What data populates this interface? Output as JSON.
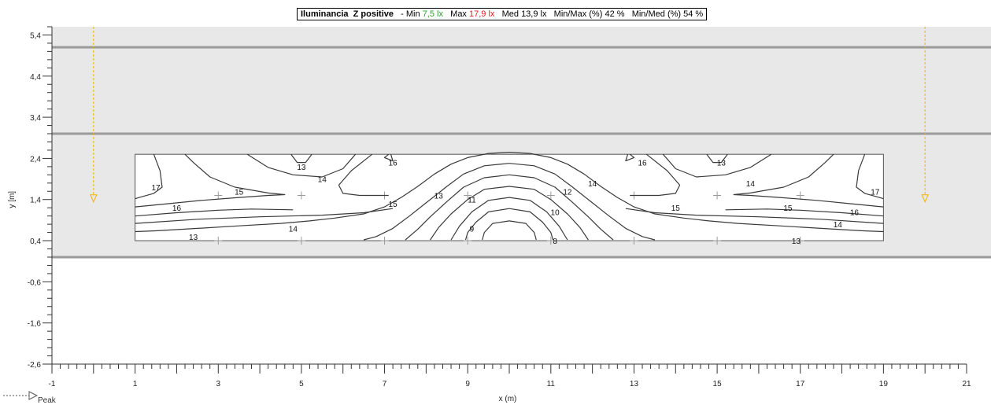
{
  "header": {
    "title": "Iluminancia",
    "plane": "Z positive",
    "min_label": "- Min",
    "min_value": "7,5 lx",
    "max_label": "Max",
    "max_value": "17,9 lx",
    "med_label": "Med",
    "med_value": "13,9 lx",
    "minmax_label": "Min/Max (%)",
    "minmax_value": "42 %",
    "minmed_label": "Min/Med (%)",
    "minmed_value": "54 %"
  },
  "legend": {
    "peak": "Peak"
  },
  "colors": {
    "room": "#e8e8e8",
    "room_border": "#9a9a9a",
    "contour": "#3a3a3a",
    "luminaire": "#f0b400",
    "min_value": "#2e9d2e",
    "max_value": "#e02020"
  },
  "chart_data": {
    "type": "contour",
    "xlabel": "x (m)",
    "ylabel": "y [m]",
    "xlim": [
      -1,
      21
    ],
    "ylim": [
      -2.6,
      5.6
    ],
    "x_ticks": [
      "-1",
      "1",
      "3",
      "5",
      "7",
      "9",
      "11",
      "13",
      "15",
      "17",
      "19",
      "21"
    ],
    "y_ticks": [
      "5,4",
      "4,4",
      "3,4",
      "2,4",
      "1,4",
      "0,4",
      "-0,6",
      "-1,6",
      "-2,6"
    ],
    "grid": false,
    "room_band": {
      "y_min": 0.0,
      "y_max": 5.6
    },
    "room_lines_y": [
      5.1,
      3.0
    ],
    "calc_area": {
      "x": [
        1,
        19
      ],
      "y": [
        0.4,
        2.5
      ]
    },
    "grid_points_x": [
      3,
      5,
      7,
      9,
      11,
      13,
      15,
      17
    ],
    "grid_points_y": [
      1.5,
      0.4
    ],
    "luminaires": [
      {
        "x": 0,
        "y_top": 5.6,
        "y_arrow": 1.4
      },
      {
        "x": 20,
        "y_top": 5.6,
        "y_arrow": 1.4
      }
    ],
    "contour_labels": [
      {
        "text": "17",
        "x": 1.5,
        "y": 1.7
      },
      {
        "text": "16",
        "x": 2.0,
        "y": 1.2
      },
      {
        "text": "15",
        "x": 3.5,
        "y": 1.6
      },
      {
        "text": "13",
        "x": 2.4,
        "y": 0.5
      },
      {
        "text": "14",
        "x": 4.8,
        "y": 0.7
      },
      {
        "text": "13",
        "x": 5.0,
        "y": 2.2
      },
      {
        "text": "14",
        "x": 5.5,
        "y": 1.9
      },
      {
        "text": "16",
        "x": 7.2,
        "y": 2.3
      },
      {
        "text": "15",
        "x": 7.2,
        "y": 1.3
      },
      {
        "text": "13",
        "x": 8.3,
        "y": 1.5
      },
      {
        "text": "11",
        "x": 9.1,
        "y": 1.4
      },
      {
        "text": "9",
        "x": 9.1,
        "y": 0.7
      },
      {
        "text": "12",
        "x": 11.4,
        "y": 1.6
      },
      {
        "text": "10",
        "x": 11.1,
        "y": 1.1
      },
      {
        "text": "8",
        "x": 11.1,
        "y": 0.4
      },
      {
        "text": "14",
        "x": 12.0,
        "y": 1.8
      },
      {
        "text": "16",
        "x": 13.2,
        "y": 2.3
      },
      {
        "text": "15",
        "x": 14.0,
        "y": 1.2
      },
      {
        "text": "13",
        "x": 15.1,
        "y": 2.3
      },
      {
        "text": "14",
        "x": 15.8,
        "y": 1.8
      },
      {
        "text": "15",
        "x": 16.7,
        "y": 1.2
      },
      {
        "text": "17",
        "x": 18.8,
        "y": 1.6
      },
      {
        "text": "16",
        "x": 18.3,
        "y": 1.1
      },
      {
        "text": "14",
        "x": 17.9,
        "y": 0.8
      },
      {
        "text": "13",
        "x": 16.9,
        "y": 0.4
      }
    ],
    "contours": [
      [
        [
          10,
          2.55
        ],
        [
          9.5,
          2.52
        ],
        [
          9,
          2.42
        ],
        [
          8.6,
          2.26
        ],
        [
          8.2,
          2.02
        ],
        [
          7.8,
          1.72
        ],
        [
          7.4,
          1.45
        ],
        [
          7.0,
          1.22
        ],
        [
          6.5,
          1.05
        ],
        [
          5.8,
          0.95
        ],
        [
          5.2,
          0.88
        ],
        [
          4.5,
          0.82
        ],
        [
          3.5,
          0.76
        ],
        [
          2.5,
          0.7
        ],
        [
          1.5,
          0.64
        ],
        [
          1,
          0.62
        ]
      ],
      [
        [
          10,
          2.55
        ],
        [
          10.5,
          2.52
        ],
        [
          11,
          2.42
        ],
        [
          11.4,
          2.26
        ],
        [
          11.8,
          2.02
        ],
        [
          12.2,
          1.72
        ],
        [
          12.6,
          1.45
        ],
        [
          13.0,
          1.22
        ],
        [
          13.5,
          1.05
        ],
        [
          14.2,
          0.95
        ],
        [
          14.8,
          0.88
        ],
        [
          15.5,
          0.82
        ],
        [
          16.5,
          0.76
        ],
        [
          17.5,
          0.7
        ],
        [
          18.5,
          0.64
        ],
        [
          19,
          0.62
        ]
      ],
      [
        [
          10,
          2.28
        ],
        [
          9.4,
          2.22
        ],
        [
          8.9,
          2.02
        ],
        [
          8.5,
          1.72
        ],
        [
          8.0,
          1.32
        ],
        [
          7.6,
          1.0
        ],
        [
          7.2,
          0.7
        ],
        [
          6.8,
          0.5
        ],
        [
          6.5,
          0.42
        ]
      ],
      [
        [
          10,
          2.28
        ],
        [
          10.6,
          2.22
        ],
        [
          11.1,
          2.02
        ],
        [
          11.5,
          1.72
        ],
        [
          12.0,
          1.32
        ],
        [
          12.4,
          1.0
        ],
        [
          12.8,
          0.7
        ],
        [
          13.2,
          0.5
        ],
        [
          13.5,
          0.42
        ]
      ],
      [
        [
          10,
          2.0
        ],
        [
          9.4,
          1.93
        ],
        [
          8.9,
          1.7
        ],
        [
          8.5,
          1.35
        ],
        [
          8.1,
          0.98
        ],
        [
          7.8,
          0.68
        ],
        [
          7.5,
          0.42
        ]
      ],
      [
        [
          10,
          2.0
        ],
        [
          10.6,
          1.93
        ],
        [
          11.1,
          1.7
        ],
        [
          11.5,
          1.35
        ],
        [
          11.9,
          0.98
        ],
        [
          12.2,
          0.68
        ],
        [
          12.5,
          0.42
        ]
      ],
      [
        [
          10,
          1.72
        ],
        [
          9.4,
          1.65
        ],
        [
          9.0,
          1.4
        ],
        [
          8.6,
          1.05
        ],
        [
          8.3,
          0.72
        ],
        [
          8.1,
          0.42
        ]
      ],
      [
        [
          10,
          1.72
        ],
        [
          10.6,
          1.65
        ],
        [
          11.0,
          1.4
        ],
        [
          11.4,
          1.05
        ],
        [
          11.7,
          0.72
        ],
        [
          11.9,
          0.42
        ]
      ],
      [
        [
          10,
          1.45
        ],
        [
          9.5,
          1.38
        ],
        [
          9.1,
          1.1
        ],
        [
          8.8,
          0.75
        ],
        [
          8.6,
          0.42
        ]
      ],
      [
        [
          10,
          1.45
        ],
        [
          10.5,
          1.38
        ],
        [
          10.9,
          1.1
        ],
        [
          11.2,
          0.75
        ],
        [
          11.4,
          0.42
        ]
      ],
      [
        [
          10,
          1.18
        ],
        [
          9.5,
          1.1
        ],
        [
          9.2,
          0.85
        ],
        [
          9.0,
          0.6
        ],
        [
          8.95,
          0.42
        ]
      ],
      [
        [
          10,
          1.18
        ],
        [
          10.5,
          1.1
        ],
        [
          10.8,
          0.85
        ],
        [
          11.0,
          0.6
        ],
        [
          11.05,
          0.42
        ]
      ],
      [
        [
          10,
          0.88
        ],
        [
          9.6,
          0.82
        ],
        [
          9.4,
          0.6
        ],
        [
          9.35,
          0.42
        ]
      ],
      [
        [
          10,
          0.88
        ],
        [
          10.4,
          0.82
        ],
        [
          10.6,
          0.6
        ],
        [
          10.65,
          0.42
        ]
      ],
      [
        [
          1.45,
          2.5
        ],
        [
          1.6,
          2.1
        ],
        [
          1.65,
          1.7
        ],
        [
          1.45,
          1.55
        ],
        [
          1.1,
          1.45
        ],
        [
          1,
          1.42
        ]
      ],
      [
        [
          1,
          1.22
        ],
        [
          1.8,
          1.3
        ],
        [
          2.6,
          1.38
        ],
        [
          3.5,
          1.45
        ],
        [
          4.2,
          1.5
        ],
        [
          4.6,
          1.52
        ],
        [
          4.2,
          1.56
        ],
        [
          3.4,
          1.7
        ],
        [
          2.8,
          1.95
        ],
        [
          2.4,
          2.3
        ],
        [
          2.2,
          2.5
        ]
      ],
      [
        [
          1,
          1.0
        ],
        [
          2.0,
          1.08
        ],
        [
          3.0,
          1.14
        ],
        [
          3.8,
          1.17
        ],
        [
          4.8,
          1.15
        ]
      ],
      [
        [
          1,
          0.82
        ],
        [
          2.5,
          0.92
        ],
        [
          4.0,
          0.98
        ],
        [
          5.5,
          1.02
        ],
        [
          6.5,
          1.08
        ],
        [
          7.2,
          1.18
        ]
      ],
      [
        [
          3.7,
          2.5
        ],
        [
          4.2,
          2.18
        ],
        [
          4.8,
          2.0
        ],
        [
          5.5,
          1.95
        ],
        [
          6.0,
          2.15
        ],
        [
          6.3,
          2.5
        ]
      ],
      [
        [
          4.75,
          2.5
        ],
        [
          4.9,
          2.3
        ],
        [
          5.1,
          2.3
        ],
        [
          5.25,
          2.5
        ]
      ],
      [
        [
          6.7,
          2.5
        ],
        [
          6.2,
          2.1
        ],
        [
          5.9,
          1.75
        ],
        [
          6.0,
          1.55
        ],
        [
          6.4,
          1.5
        ],
        [
          7.1,
          1.5
        ]
      ],
      [
        [
          7.1,
          2.5
        ],
        [
          7.0,
          2.42
        ],
        [
          7.2,
          2.34
        ],
        [
          7.15,
          2.5
        ]
      ],
      [
        [
          18.55,
          2.5
        ],
        [
          18.4,
          2.1
        ],
        [
          18.35,
          1.7
        ],
        [
          18.55,
          1.55
        ],
        [
          18.9,
          1.45
        ],
        [
          19,
          1.42
        ]
      ],
      [
        [
          19,
          1.22
        ],
        [
          18.2,
          1.3
        ],
        [
          17.4,
          1.38
        ],
        [
          16.5,
          1.45
        ],
        [
          15.8,
          1.5
        ],
        [
          15.4,
          1.52
        ],
        [
          15.8,
          1.56
        ],
        [
          16.6,
          1.7
        ],
        [
          17.2,
          1.95
        ],
        [
          17.6,
          2.3
        ],
        [
          17.8,
          2.5
        ]
      ],
      [
        [
          19,
          1.0
        ],
        [
          18.0,
          1.08
        ],
        [
          17.0,
          1.14
        ],
        [
          16.2,
          1.17
        ],
        [
          15.2,
          1.15
        ]
      ],
      [
        [
          19,
          0.82
        ],
        [
          17.5,
          0.92
        ],
        [
          16.0,
          0.98
        ],
        [
          14.5,
          1.02
        ],
        [
          13.5,
          1.08
        ],
        [
          12.8,
          1.18
        ]
      ],
      [
        [
          16.3,
          2.5
        ],
        [
          15.8,
          2.18
        ],
        [
          15.2,
          2.0
        ],
        [
          14.5,
          1.95
        ],
        [
          14.0,
          2.15
        ],
        [
          13.7,
          2.5
        ]
      ],
      [
        [
          15.25,
          2.5
        ],
        [
          15.1,
          2.3
        ],
        [
          14.9,
          2.3
        ],
        [
          14.75,
          2.5
        ]
      ],
      [
        [
          13.3,
          2.5
        ],
        [
          13.8,
          2.1
        ],
        [
          14.1,
          1.75
        ],
        [
          14.0,
          1.55
        ],
        [
          13.6,
          1.5
        ],
        [
          12.9,
          1.5
        ]
      ],
      [
        [
          12.9,
          2.5
        ],
        [
          13.0,
          2.42
        ],
        [
          12.8,
          2.34
        ],
        [
          12.85,
          2.5
        ]
      ]
    ]
  }
}
